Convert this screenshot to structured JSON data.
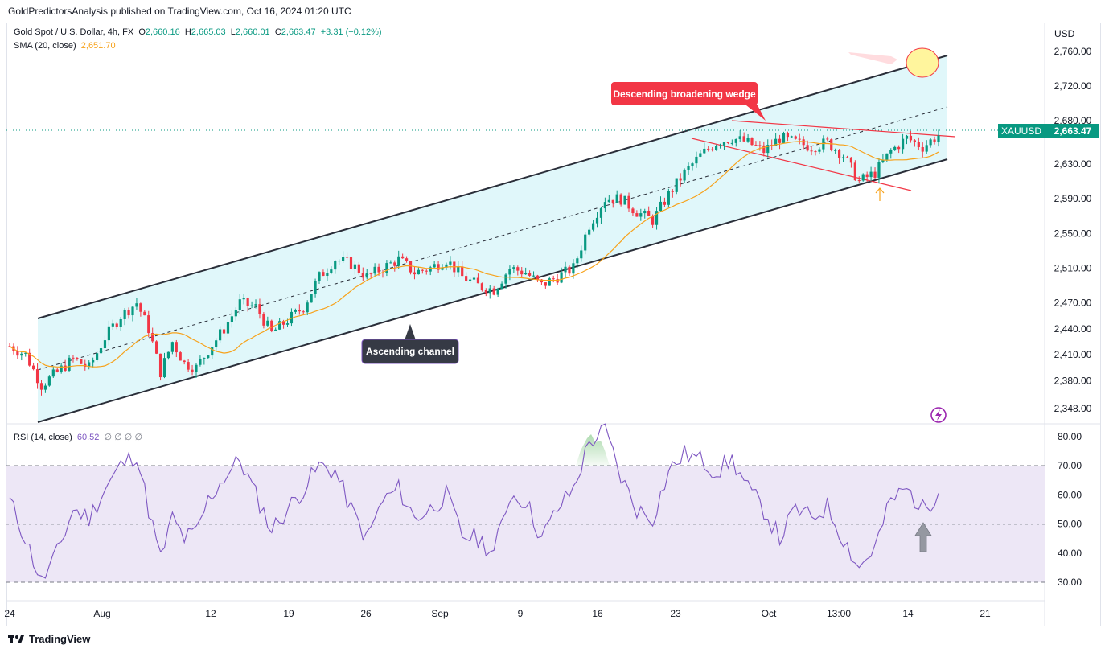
{
  "publisher_line": "GoldPredictorsAnalysis published on TradingView.com, Oct 16, 2024 01:20 UTC",
  "legend": {
    "symbol_desc": "Gold Spot / U.S. Dollar, 4h, FX",
    "o_label": "O",
    "o_val": "2,660.16",
    "h_label": "H",
    "h_val": "2,665.03",
    "l_label": "L",
    "l_val": "2,660.01",
    "c_label": "C",
    "c_val": "2,663.47",
    "change": "+3.31 (+0.12%)",
    "sma_label": "SMA (20, close)",
    "sma_val": "2,651.70",
    "rsi_label": "RSI (14, close)",
    "rsi_val": "60.52",
    "rsi_extra": "∅ ∅ ∅ ∅"
  },
  "currency": "USD",
  "price_tag": {
    "symbol": "XAUUSD",
    "value": "2,663.47",
    "color": "#089981"
  },
  "annotations": {
    "wedge": "Descending broadening wedge",
    "channel": "Ascending channel"
  },
  "footer": {
    "brand": "TradingView"
  },
  "colors": {
    "up": "#089981",
    "down": "#f23645",
    "sma": "#f7a21b",
    "rsi": "#7e57c2",
    "channel_fill": "#e0f7fa",
    "rsi_band": "#ede7f6",
    "wedge": "#f23645"
  },
  "chart_data": [
    {
      "type": "candlestick",
      "title": "Gold Spot / U.S. Dollar, 4h, FX",
      "x_ticks": [
        "24",
        "Aug",
        "12",
        "19",
        "26",
        "Sep",
        "9",
        "16",
        "23",
        "Oct",
        "13:00",
        "14",
        "21"
      ],
      "y_ticks": [
        "2,348.00",
        "2,380.00",
        "2,410.00",
        "2,440.00",
        "2,470.00",
        "2,510.00",
        "2,550.00",
        "2,590.00",
        "2,630.00",
        "2,680.00",
        "2,720.00",
        "2,760.00"
      ],
      "ylim": [
        2330,
        2790
      ],
      "last_price": 2663.47,
      "close_path": [
        [
          0,
          2420
        ],
        [
          4,
          2410
        ],
        [
          8,
          2375
        ],
        [
          12,
          2390
        ],
        [
          16,
          2405
        ],
        [
          20,
          2395
        ],
        [
          24,
          2430
        ],
        [
          28,
          2455
        ],
        [
          32,
          2470
        ],
        [
          35,
          2440
        ],
        [
          38,
          2390
        ],
        [
          41,
          2425
        ],
        [
          44,
          2400
        ],
        [
          47,
          2395
        ],
        [
          50,
          2415
        ],
        [
          54,
          2440
        ],
        [
          58,
          2470
        ],
        [
          62,
          2465
        ],
        [
          66,
          2435
        ],
        [
          70,
          2450
        ],
        [
          74,
          2465
        ],
        [
          78,
          2500
        ],
        [
          82,
          2520
        ],
        [
          86,
          2515
        ],
        [
          90,
          2500
        ],
        [
          94,
          2510
        ],
        [
          98,
          2520
        ],
        [
          102,
          2505
        ],
        [
          106,
          2510
        ],
        [
          110,
          2520
        ],
        [
          114,
          2500
        ],
        [
          118,
          2490
        ],
        [
          122,
          2485
        ],
        [
          126,
          2510
        ],
        [
          130,
          2505
        ],
        [
          134,
          2490
        ],
        [
          138,
          2500
        ],
        [
          142,
          2510
        ],
        [
          146,
          2560
        ],
        [
          150,
          2590
        ],
        [
          154,
          2590
        ],
        [
          158,
          2575
        ],
        [
          162,
          2565
        ],
        [
          166,
          2595
        ],
        [
          170,
          2620
        ],
        [
          174,
          2640
        ],
        [
          178,
          2655
        ],
        [
          182,
          2660
        ],
        [
          186,
          2655
        ],
        [
          190,
          2645
        ],
        [
          194,
          2660
        ],
        [
          198,
          2655
        ],
        [
          202,
          2650
        ],
        [
          206,
          2655
        ],
        [
          210,
          2640
        ],
        [
          214,
          2610
        ],
        [
          218,
          2620
        ],
        [
          222,
          2645
        ],
        [
          226,
          2660
        ],
        [
          230,
          2650
        ],
        [
          234,
          2663.47
        ]
      ],
      "series": [
        {
          "name": "SMA (20, close)",
          "last_value": 2651.7
        }
      ],
      "annotations": [
        "Descending broadening wedge",
        "Ascending channel"
      ]
    },
    {
      "type": "line",
      "title": "RSI (14, close)",
      "y_ticks": [
        "30.00",
        "40.00",
        "50.00",
        "60.00",
        "70.00",
        "80.00"
      ],
      "ylim": [
        25,
        85
      ],
      "bands": [
        30,
        50,
        70
      ],
      "last_value": 60.52,
      "values": [
        [
          0,
          58
        ],
        [
          4,
          45
        ],
        [
          8,
          30
        ],
        [
          12,
          40
        ],
        [
          16,
          55
        ],
        [
          20,
          52
        ],
        [
          24,
          62
        ],
        [
          28,
          70
        ],
        [
          32,
          74
        ],
        [
          35,
          55
        ],
        [
          38,
          38
        ],
        [
          41,
          52
        ],
        [
          44,
          45
        ],
        [
          47,
          47
        ],
        [
          50,
          58
        ],
        [
          54,
          66
        ],
        [
          58,
          72
        ],
        [
          62,
          60
        ],
        [
          66,
          48
        ],
        [
          70,
          55
        ],
        [
          74,
          62
        ],
        [
          78,
          70
        ],
        [
          82,
          68
        ],
        [
          86,
          55
        ],
        [
          90,
          45
        ],
        [
          94,
          58
        ],
        [
          98,
          62
        ],
        [
          102,
          52
        ],
        [
          106,
          55
        ],
        [
          110,
          60
        ],
        [
          114,
          46
        ],
        [
          118,
          45
        ],
        [
          122,
          40
        ],
        [
          126,
          60
        ],
        [
          130,
          58
        ],
        [
          134,
          45
        ],
        [
          138,
          55
        ],
        [
          142,
          62
        ],
        [
          146,
          78
        ],
        [
          150,
          82
        ],
        [
          154,
          66
        ],
        [
          158,
          55
        ],
        [
          162,
          52
        ],
        [
          166,
          68
        ],
        [
          170,
          74
        ],
        [
          174,
          72
        ],
        [
          178,
          68
        ],
        [
          182,
          72
        ],
        [
          186,
          62
        ],
        [
          190,
          55
        ],
        [
          194,
          45
        ],
        [
          198,
          55
        ],
        [
          202,
          52
        ],
        [
          206,
          56
        ],
        [
          210,
          45
        ],
        [
          214,
          35
        ],
        [
          218,
          42
        ],
        [
          222,
          58
        ],
        [
          226,
          62
        ],
        [
          230,
          55
        ],
        [
          234,
          60.52
        ]
      ]
    }
  ]
}
